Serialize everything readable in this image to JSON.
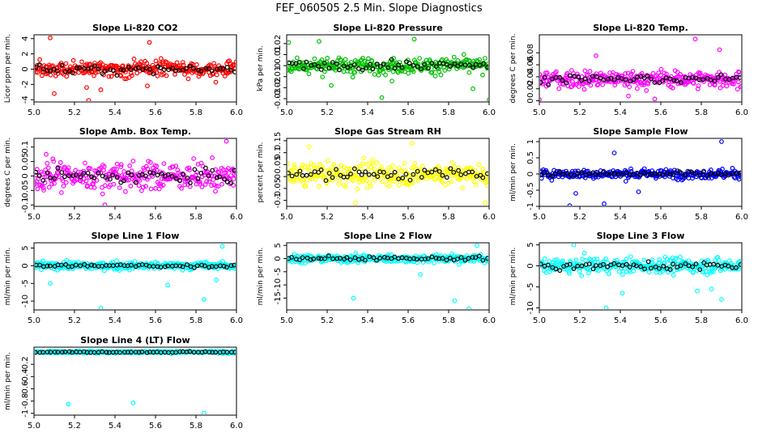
{
  "figure_title": "FEF_060505  2.5 Min. Slope Diagnostics",
  "chart_data": [
    {
      "type": "scatter",
      "title": "Slope Li-820 CO2",
      "ylabel": "Licor ppm per min.",
      "xlim": [
        5.0,
        6.0
      ],
      "ylim": [
        -4.3,
        4.5
      ],
      "yticks": [
        -4,
        -2,
        0,
        2,
        4
      ],
      "xticks": [
        5.0,
        5.2,
        5.4,
        5.6,
        5.8,
        6.0
      ],
      "color": "#ff0000",
      "spread": 0.9,
      "baseline": 0,
      "out": [
        [
          5.08,
          4.1
        ],
        [
          5.27,
          -4.1
        ],
        [
          5.1,
          -3.2
        ],
        [
          5.33,
          -2.7
        ],
        [
          5.57,
          3.5
        ],
        [
          5.56,
          -2.2
        ],
        [
          5.26,
          -2.4
        ]
      ]
    },
    {
      "type": "scatter",
      "title": "Slope Li-820 Pressure",
      "ylabel": "kPa per min.",
      "xlim": [
        5.0,
        6.0
      ],
      "ylim": [
        -0.033,
        0.028
      ],
      "yticks": [
        -0.03,
        -0.02,
        -0.01,
        0.0,
        0.01,
        0.02
      ],
      "xticks": [
        5.0,
        5.2,
        5.4,
        5.6,
        5.8,
        6.0
      ],
      "color": "#00c000",
      "spread": 0.006,
      "baseline": 0,
      "out": [
        [
          5.47,
          -0.029
        ],
        [
          6.0,
          -0.031
        ],
        [
          5.63,
          0.024
        ],
        [
          5.16,
          0.022
        ],
        [
          5.22,
          -0.018
        ],
        [
          5.92,
          -0.021
        ],
        [
          5.52,
          -0.014
        ],
        [
          5.01,
          0.021
        ]
      ]
    },
    {
      "type": "scatter",
      "title": "Slope Li-820 Temp.",
      "ylabel": "degrees C per min.",
      "xlim": [
        5.0,
        6.0
      ],
      "ylim": [
        -0.002,
        0.11
      ],
      "yticks": [
        0.0,
        0.02,
        0.04,
        0.06,
        0.08
      ],
      "xticks": [
        5.0,
        5.2,
        5.4,
        5.6,
        5.8,
        6.0
      ],
      "color": "#ff00ff",
      "spread": 0.012,
      "baseline": 0.036,
      "out": [
        [
          5.77,
          0.103
        ],
        [
          5.0,
          0.002
        ],
        [
          5.57,
          0.003
        ],
        [
          5.28,
          0.075
        ],
        [
          5.89,
          0.085
        ],
        [
          5.44,
          0.008
        ]
      ]
    },
    {
      "type": "scatter",
      "title": "Slope Amb. Box Temp.",
      "ylabel": "degrees C per min.",
      "xlim": [
        5.0,
        6.0
      ],
      "ylim": [
        -0.105,
        0.13
      ],
      "yticks": [
        -0.1,
        -0.05,
        0.0,
        0.05,
        0.1
      ],
      "xticks": [
        5.0,
        5.2,
        5.4,
        5.6,
        5.8,
        6.0
      ],
      "color": "#ff00ff",
      "spread": 0.04,
      "baseline": 0,
      "out": [
        [
          5.95,
          0.12
        ],
        [
          5.35,
          -0.1
        ],
        [
          5.06,
          0.075
        ]
      ]
    },
    {
      "type": "scatter",
      "title": "Slope Gas Stream RH",
      "ylabel": "percent per min.",
      "xlim": [
        5.0,
        6.0
      ],
      "ylim": [
        -0.125,
        0.16
      ],
      "yticks": [
        -0.1,
        -0.05,
        0.0,
        0.05,
        0.1,
        0.15
      ],
      "xticks": [
        5.0,
        5.2,
        5.4,
        5.6,
        5.8,
        6.0
      ],
      "color": "#ffff00",
      "spread": 0.04,
      "baseline": 0.01,
      "out": [
        [
          5.62,
          0.14
        ],
        [
          5.34,
          -0.11
        ],
        [
          5.11,
          0.125
        ],
        [
          5.98,
          -0.11
        ]
      ]
    },
    {
      "type": "scatter",
      "title": "Slope Sample Flow",
      "ylabel": "ml/min per min.",
      "xlim": [
        5.0,
        6.0
      ],
      "ylim": [
        -1.0,
        1.1
      ],
      "yticks": [
        -1.0,
        -0.5,
        0.0,
        0.5,
        1.0
      ],
      "xticks": [
        5.0,
        5.2,
        5.4,
        5.6,
        5.8,
        6.0
      ],
      "color": "#0000ff",
      "spread": 0.12,
      "baseline": 0,
      "out": [
        [
          5.9,
          1.0
        ],
        [
          5.37,
          0.65
        ],
        [
          5.15,
          -0.98
        ],
        [
          5.32,
          -0.92
        ],
        [
          5.18,
          -0.6
        ],
        [
          5.49,
          -0.55
        ]
      ]
    },
    {
      "type": "scatter",
      "title": "Slope Line 1 Flow",
      "ylabel": "ml/min per min.",
      "xlim": [
        5.0,
        6.0
      ],
      "ylim": [
        -12.5,
        6.5
      ],
      "yticks": [
        -10,
        -5,
        0,
        5
      ],
      "xticks": [
        5.0,
        5.2,
        5.4,
        5.6,
        5.8,
        6.0
      ],
      "color": "#00ffff",
      "spread": 0.9,
      "baseline": 0,
      "out": [
        [
          5.33,
          -12.0
        ],
        [
          5.84,
          -9.5
        ],
        [
          5.66,
          -5.5
        ],
        [
          5.93,
          5.5
        ],
        [
          5.08,
          -5.0
        ],
        [
          5.9,
          -4.0
        ]
      ]
    },
    {
      "type": "scatter",
      "title": "Slope Line 2 Flow",
      "ylabel": "ml/min per min.",
      "xlim": [
        5.0,
        6.0
      ],
      "ylim": [
        -19.5,
        6.0
      ],
      "yticks": [
        -15,
        -10,
        -5,
        0,
        5
      ],
      "xticks": [
        5.0,
        5.2,
        5.4,
        5.6,
        5.8,
        6.0
      ],
      "color": "#00ffff",
      "spread": 1.3,
      "baseline": 0,
      "out": [
        [
          5.9,
          -19.0
        ],
        [
          5.33,
          -15.0
        ],
        [
          5.83,
          -16.0
        ],
        [
          5.66,
          -6.0
        ],
        [
          5.94,
          5.0
        ]
      ]
    },
    {
      "type": "scatter",
      "title": "Slope Line 3 Flow",
      "ylabel": "ml/min per min.",
      "xlim": [
        5.0,
        6.0
      ],
      "ylim": [
        -10.5,
        5.5
      ],
      "yticks": [
        -10,
        -5,
        0,
        5
      ],
      "xticks": [
        5.0,
        5.2,
        5.4,
        5.6,
        5.8,
        6.0
      ],
      "color": "#00ffff",
      "spread": 1.5,
      "baseline": 0,
      "out": [
        [
          5.33,
          -10.0
        ],
        [
          5.9,
          -8.0
        ],
        [
          5.17,
          5.0
        ],
        [
          5.78,
          -6.0
        ],
        [
          5.41,
          -6.5
        ],
        [
          5.85,
          -5.5
        ]
      ]
    },
    {
      "type": "scatter",
      "title": "Slope Line 4 (LT) Flow",
      "ylabel": "ml/min per min.",
      "xlim": [
        5.0,
        6.0
      ],
      "ylim": [
        -1.03,
        0.08
      ],
      "yticks": [
        -1.0,
        -0.8,
        -0.6,
        -0.4,
        -0.2
      ],
      "xticks": [
        5.0,
        5.2,
        5.4,
        5.6,
        5.8,
        6.0
      ],
      "color": "#00ffff",
      "spread": 0.015,
      "baseline": 0.0,
      "out": [
        [
          5.17,
          -0.85
        ],
        [
          5.49,
          -0.83
        ],
        [
          5.84,
          -1.0
        ]
      ]
    }
  ]
}
